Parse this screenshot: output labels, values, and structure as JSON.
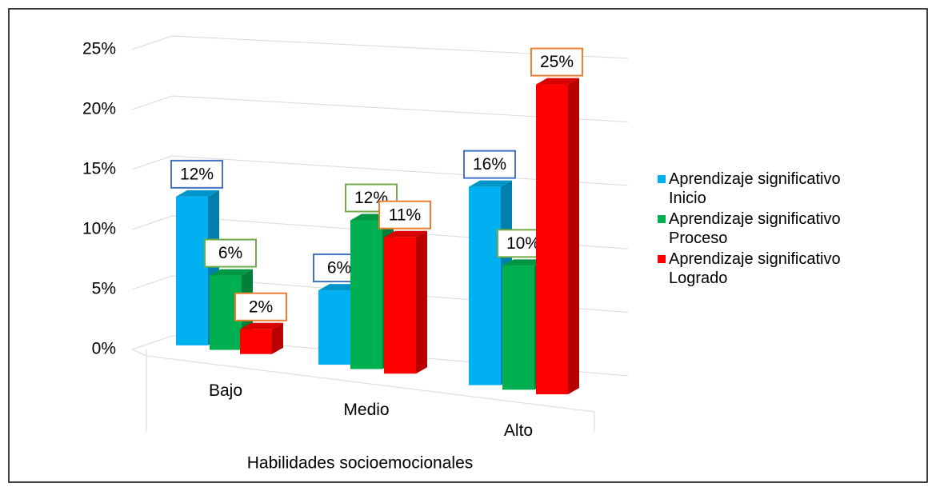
{
  "chart_data": {
    "type": "bar3d",
    "x_label": "Habilidades socioemocionales",
    "categories": [
      "Bajo",
      "Medio",
      "Alto"
    ],
    "series": [
      {
        "name": "Aprendizaje significativo Inicio",
        "color": "#00b0f0",
        "label_border": "#4472c4",
        "values": [
          12,
          6,
          16
        ],
        "value_labels": [
          "12%",
          "6%",
          "16%"
        ]
      },
      {
        "name": "Aprendizaje significativo Proceso",
        "color": "#00b050",
        "label_border": "#70ad47",
        "values": [
          6,
          12,
          10
        ],
        "value_labels": [
          "6%",
          "12%",
          "10%"
        ]
      },
      {
        "name": "Aprendizaje significativo Logrado",
        "color": "#ff0000",
        "label_border": "#ed7d31",
        "values": [
          2,
          11,
          25
        ],
        "value_labels": [
          "2%",
          "11%",
          "25%"
        ]
      }
    ],
    "ylim": [
      0,
      25
    ],
    "yticks": [
      {
        "value": 0,
        "label": "0%"
      },
      {
        "value": 5,
        "label": "5%"
      },
      {
        "value": 10,
        "label": "10%"
      },
      {
        "value": 15,
        "label": "15%"
      },
      {
        "value": 20,
        "label": "20%"
      },
      {
        "value": 25,
        "label": "25%"
      }
    ],
    "grid": true,
    "legend": "right"
  }
}
